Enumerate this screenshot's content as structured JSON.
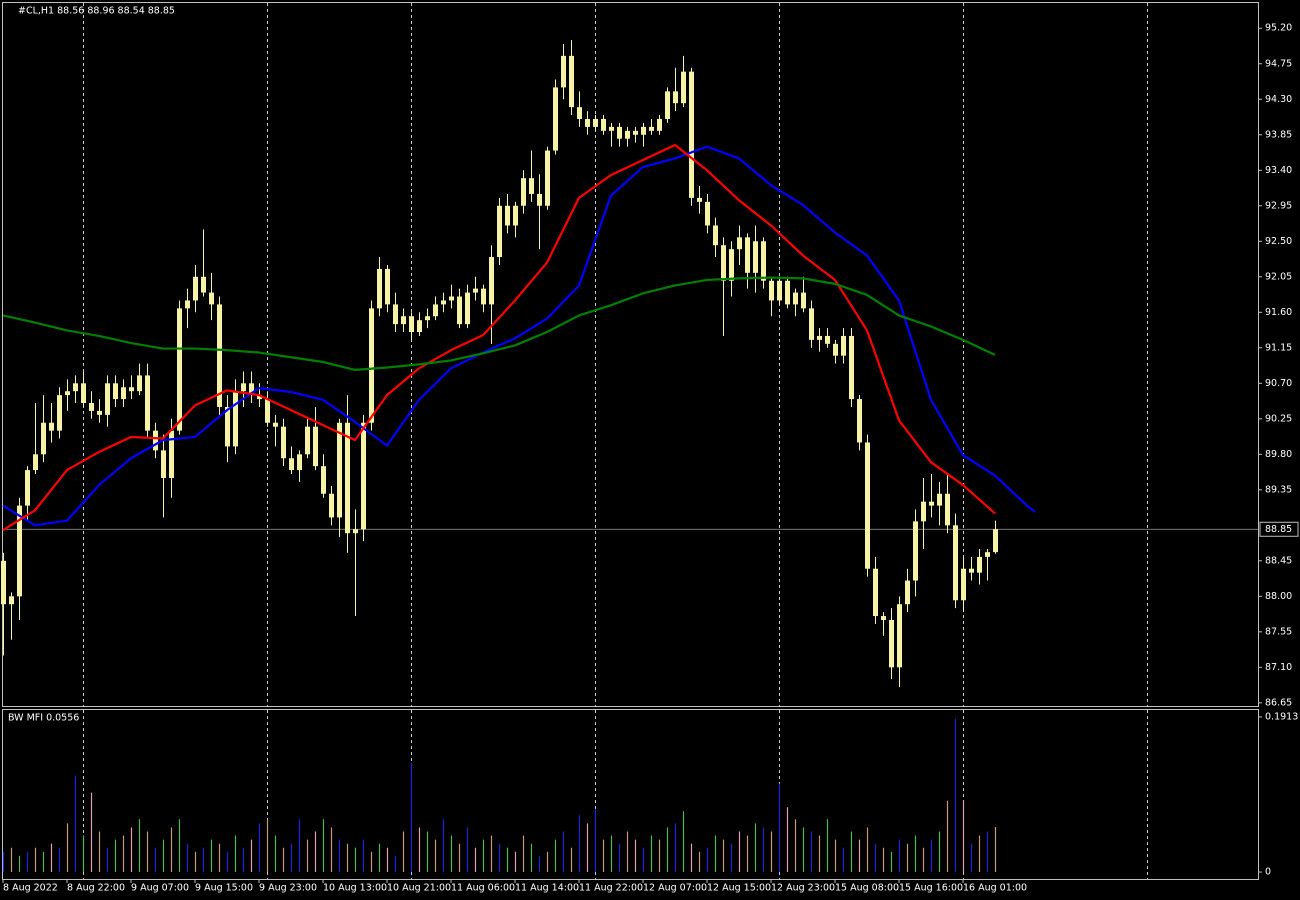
{
  "chart_data": {
    "type": "candlestick",
    "title": "#CL,H1  88.56 88.96 88.54 88.85",
    "candle_color": "#f6f2a6",
    "xlim": [
      -0.125,
      156.875
    ],
    "xticks": [
      {
        "value": 0,
        "label": "8 Aug 2022"
      },
      {
        "value": 8,
        "label": "8 Aug 22:00"
      },
      {
        "value": 16,
        "label": "9 Aug 07:00"
      },
      {
        "value": 24,
        "label": "9 Aug 15:00"
      },
      {
        "value": 32,
        "label": "9 Aug 23:00"
      },
      {
        "value": 40,
        "label": "10 Aug 13:00"
      },
      {
        "value": 48,
        "label": "10 Aug 21:00"
      },
      {
        "value": 56,
        "label": "11 Aug 06:00"
      },
      {
        "value": 64,
        "label": "11 Aug 14:00"
      },
      {
        "value": 72,
        "label": "11 Aug 22:00"
      },
      {
        "value": 80,
        "label": "12 Aug 07:00"
      },
      {
        "value": 88,
        "label": "12 Aug 15:00"
      },
      {
        "value": 96,
        "label": "12 Aug 23:00"
      },
      {
        "value": 104,
        "label": "15 Aug 08:00"
      },
      {
        "value": 112,
        "label": "15 Aug 16:00"
      },
      {
        "value": 120,
        "label": "16 Aug 01:00"
      }
    ],
    "vgrid": [
      10,
      33,
      51,
      74,
      97,
      120,
      143
    ],
    "ylim": [
      86.61,
      95.52
    ],
    "yticks": [
      {
        "value": 95.2,
        "label": "95.20"
      },
      94.75,
      {
        "value": 94.3,
        "label": "94.30"
      },
      93.85,
      {
        "value": 93.4,
        "label": "93.40"
      },
      92.95,
      {
        "value": 92.5,
        "label": "92.50"
      },
      92.05,
      {
        "value": 91.6,
        "label": "91.60"
      },
      91.15,
      {
        "value": 90.7,
        "label": "90.70"
      },
      90.25,
      {
        "value": 89.8,
        "label": "89.80"
      },
      89.35,
      88.45,
      {
        "value": 88.0,
        "label": "88.00"
      },
      87.55,
      {
        "value": 87.1,
        "label": "87.10"
      },
      86.65
    ],
    "last_price": 88.85,
    "ohlc": [
      [
        88.45,
        88.55,
        87.25,
        87.9
      ],
      [
        87.9,
        88.05,
        87.45,
        88.0
      ],
      [
        88.0,
        89.25,
        87.7,
        89.15
      ],
      [
        89.15,
        89.65,
        88.95,
        89.6
      ],
      [
        89.6,
        90.45,
        89.55,
        89.8
      ],
      [
        89.8,
        90.55,
        89.7,
        90.2
      ],
      [
        90.2,
        90.45,
        89.95,
        90.1
      ],
      [
        90.1,
        90.65,
        90.0,
        90.55
      ],
      [
        90.55,
        90.75,
        90.35,
        90.6
      ],
      [
        90.6,
        90.8,
        90.45,
        90.7
      ],
      [
        90.7,
        90.85,
        90.4,
        90.45
      ],
      [
        90.45,
        90.6,
        90.25,
        90.35
      ],
      [
        90.35,
        90.5,
        90.2,
        90.3
      ],
      [
        90.3,
        90.8,
        90.15,
        90.7
      ],
      [
        90.7,
        90.8,
        90.4,
        90.5
      ],
      [
        90.5,
        90.75,
        90.4,
        90.65
      ],
      [
        90.65,
        90.8,
        90.5,
        90.6
      ],
      [
        90.6,
        90.95,
        90.55,
        90.8
      ],
      [
        90.8,
        90.95,
        90.0,
        90.1
      ],
      [
        90.1,
        90.2,
        89.75,
        89.85
      ],
      [
        89.85,
        90.05,
        89.0,
        89.5
      ],
      [
        89.5,
        90.25,
        89.25,
        90.1
      ],
      [
        90.1,
        91.75,
        90.05,
        91.65
      ],
      [
        91.65,
        91.9,
        91.4,
        91.75
      ],
      [
        91.75,
        92.2,
        91.6,
        92.05
      ],
      [
        92.05,
        92.65,
        91.8,
        91.85
      ],
      [
        91.85,
        92.1,
        91.5,
        91.7
      ],
      [
        91.7,
        91.8,
        90.3,
        90.4
      ],
      [
        90.4,
        90.55,
        89.7,
        89.9
      ],
      [
        89.9,
        90.75,
        89.8,
        90.6
      ],
      [
        90.6,
        90.85,
        90.4,
        90.7
      ],
      [
        90.7,
        90.85,
        90.45,
        90.55
      ],
      [
        90.55,
        90.7,
        90.4,
        90.5
      ],
      [
        90.5,
        90.6,
        90.15,
        90.2
      ],
      [
        90.2,
        90.3,
        89.9,
        90.15
      ],
      [
        90.15,
        90.25,
        89.65,
        89.75
      ],
      [
        89.75,
        89.9,
        89.55,
        89.6
      ],
      [
        89.6,
        89.85,
        89.45,
        89.8
      ],
      [
        89.8,
        90.25,
        89.75,
        90.15
      ],
      [
        90.15,
        90.4,
        89.6,
        89.65
      ],
      [
        89.65,
        89.8,
        89.25,
        89.3
      ],
      [
        89.3,
        89.4,
        88.9,
        89.0
      ],
      [
        89.0,
        90.25,
        88.75,
        90.2
      ],
      [
        90.2,
        90.55,
        88.55,
        88.8
      ],
      [
        88.8,
        89.1,
        87.75,
        88.85
      ],
      [
        88.85,
        90.3,
        88.7,
        90.2
      ],
      [
        90.2,
        91.75,
        90.1,
        91.65
      ],
      [
        91.65,
        92.3,
        91.55,
        92.15
      ],
      [
        92.15,
        92.2,
        91.6,
        91.7
      ],
      [
        91.7,
        91.85,
        91.35,
        91.45
      ],
      [
        91.45,
        91.65,
        91.35,
        91.55
      ],
      [
        91.55,
        91.6,
        91.25,
        91.35
      ],
      [
        91.35,
        91.6,
        91.3,
        91.5
      ],
      [
        91.5,
        91.65,
        91.4,
        91.55
      ],
      [
        91.55,
        91.8,
        91.5,
        91.7
      ],
      [
        91.7,
        91.85,
        91.6,
        91.75
      ],
      [
        91.75,
        91.95,
        91.65,
        91.8
      ],
      [
        91.8,
        91.9,
        91.4,
        91.45
      ],
      [
        91.45,
        91.95,
        91.4,
        91.85
      ],
      [
        91.85,
        92.05,
        91.75,
        91.9
      ],
      [
        91.9,
        91.95,
        91.6,
        91.7
      ],
      [
        91.7,
        92.45,
        91.2,
        92.3
      ],
      [
        92.3,
        93.05,
        92.2,
        92.95
      ],
      [
        92.95,
        93.1,
        92.6,
        92.7
      ],
      [
        92.7,
        93.0,
        92.55,
        92.95
      ],
      [
        92.95,
        93.4,
        92.85,
        93.3
      ],
      [
        93.3,
        93.65,
        93.0,
        93.1
      ],
      [
        93.1,
        93.35,
        92.4,
        92.95
      ],
      [
        92.95,
        93.7,
        92.9,
        93.65
      ],
      [
        93.65,
        94.55,
        93.6,
        94.45
      ],
      [
        94.45,
        95.0,
        94.3,
        94.85
      ],
      [
        94.85,
        95.05,
        94.1,
        94.2
      ],
      [
        94.2,
        94.4,
        93.95,
        94.05
      ],
      [
        94.05,
        94.15,
        93.85,
        93.95
      ],
      [
        93.95,
        94.1,
        93.9,
        94.05
      ],
      [
        94.05,
        94.1,
        93.85,
        93.9
      ],
      [
        93.9,
        94.0,
        93.7,
        93.95
      ],
      [
        93.95,
        94.0,
        93.7,
        93.8
      ],
      [
        93.8,
        93.95,
        93.7,
        93.9
      ],
      [
        93.9,
        93.95,
        93.75,
        93.85
      ],
      [
        93.85,
        94.0,
        93.7,
        93.95
      ],
      [
        93.95,
        94.05,
        93.85,
        93.9
      ],
      [
        93.9,
        94.1,
        93.85,
        94.05
      ],
      [
        94.05,
        94.45,
        94.0,
        94.4
      ],
      [
        94.4,
        94.7,
        94.15,
        94.25
      ],
      [
        94.25,
        94.85,
        94.2,
        94.65
      ],
      [
        94.65,
        94.7,
        92.95,
        93.05
      ],
      [
        93.05,
        93.2,
        92.85,
        93.0
      ],
      [
        93.0,
        93.1,
        92.6,
        92.7
      ],
      [
        92.7,
        92.8,
        92.3,
        92.45
      ],
      [
        92.45,
        92.55,
        91.3,
        92.0
      ],
      [
        92.0,
        92.5,
        91.8,
        92.4
      ],
      [
        92.4,
        92.7,
        92.2,
        92.55
      ],
      [
        92.55,
        92.6,
        91.9,
        92.1
      ],
      [
        92.1,
        92.7,
        91.85,
        92.5
      ],
      [
        92.5,
        92.55,
        91.9,
        92.0
      ],
      [
        92.0,
        92.05,
        91.55,
        91.75
      ],
      [
        91.75,
        92.05,
        91.7,
        92.0
      ],
      [
        92.0,
        92.05,
        91.65,
        91.7
      ],
      [
        91.7,
        91.9,
        91.55,
        91.85
      ],
      [
        91.85,
        92.05,
        91.6,
        91.65
      ],
      [
        91.65,
        91.75,
        91.15,
        91.25
      ],
      [
        91.25,
        91.4,
        91.1,
        91.3
      ],
      [
        91.3,
        91.4,
        91.15,
        91.2
      ],
      [
        91.2,
        91.25,
        90.95,
        91.05
      ],
      [
        91.05,
        91.4,
        90.95,
        91.3
      ],
      [
        91.3,
        91.4,
        90.4,
        90.5
      ],
      [
        90.5,
        90.55,
        89.85,
        89.95
      ],
      [
        89.95,
        90.05,
        88.25,
        88.35
      ],
      [
        88.35,
        88.5,
        87.65,
        87.75
      ],
      [
        87.75,
        87.8,
        87.5,
        87.7
      ],
      [
        87.7,
        87.85,
        86.95,
        87.1
      ],
      [
        87.1,
        88.0,
        86.85,
        87.9
      ],
      [
        87.9,
        88.35,
        87.8,
        88.2
      ],
      [
        88.2,
        89.1,
        88.0,
        88.95
      ],
      [
        88.95,
        89.5,
        88.6,
        89.2
      ],
      [
        89.2,
        89.55,
        89.0,
        89.15
      ],
      [
        89.15,
        89.45,
        88.9,
        89.3
      ],
      [
        89.3,
        89.55,
        88.8,
        88.9
      ],
      [
        88.9,
        89.05,
        87.85,
        87.95
      ],
      [
        87.95,
        88.5,
        87.8,
        88.35
      ],
      [
        88.35,
        88.5,
        88.2,
        88.3
      ],
      [
        88.3,
        88.6,
        88.15,
        88.5
      ],
      [
        88.5,
        88.6,
        88.2,
        88.56
      ],
      [
        88.56,
        88.96,
        88.54,
        88.85
      ]
    ],
    "series": [
      {
        "color": "#0000ff",
        "x": [
          0,
          4,
          8,
          12,
          16,
          20,
          24,
          28,
          32,
          36,
          40,
          44,
          48,
          52,
          56,
          60,
          64,
          68,
          72,
          76,
          80,
          84,
          88,
          92,
          96,
          100,
          104,
          108,
          112,
          116,
          120,
          124,
          128,
          129
        ],
        "values": [
          89.15,
          88.9,
          88.96,
          89.41,
          89.75,
          89.98,
          90.02,
          90.36,
          90.64,
          90.59,
          90.49,
          90.21,
          89.91,
          90.49,
          90.89,
          91.09,
          91.27,
          91.52,
          91.94,
          93.08,
          93.44,
          93.55,
          93.7,
          93.55,
          93.21,
          92.96,
          92.61,
          92.32,
          91.75,
          90.49,
          89.79,
          89.53,
          89.15,
          89.07
        ]
      },
      {
        "color": "#ff0000",
        "x": [
          0,
          4,
          8,
          12,
          16,
          20,
          24,
          28,
          32,
          36,
          40,
          44,
          48,
          52,
          56,
          60,
          64,
          68,
          72,
          76,
          80,
          84,
          88,
          92,
          96,
          100,
          104,
          108,
          112,
          116,
          120,
          124
        ],
        "values": [
          88.84,
          89.09,
          89.6,
          89.83,
          90.02,
          90.0,
          90.42,
          90.61,
          90.55,
          90.36,
          90.17,
          89.98,
          90.55,
          90.89,
          91.12,
          91.31,
          91.75,
          92.23,
          93.05,
          93.34,
          93.53,
          93.72,
          93.4,
          93.02,
          92.7,
          92.32,
          92.01,
          91.37,
          90.23,
          89.7,
          89.41,
          89.05
        ]
      },
      {
        "color": "#008000",
        "x": [
          0,
          4,
          8,
          12,
          16,
          20,
          24,
          28,
          32,
          36,
          40,
          44,
          48,
          52,
          56,
          60,
          64,
          68,
          72,
          76,
          80,
          84,
          88,
          92,
          96,
          100,
          104,
          108,
          112,
          116,
          120,
          124
        ],
        "values": [
          91.56,
          91.47,
          91.37,
          91.3,
          91.21,
          91.14,
          91.14,
          91.12,
          91.09,
          91.03,
          90.97,
          90.87,
          90.9,
          90.94,
          90.99,
          91.08,
          91.18,
          91.35,
          91.56,
          91.69,
          91.84,
          91.94,
          92.01,
          92.03,
          92.04,
          92.03,
          91.96,
          91.82,
          91.56,
          91.42,
          91.25,
          91.06
        ]
      }
    ],
    "mfi": {
      "label": "BW MFI 0.0556",
      "ylim": [
        -0.0086,
        0.1999
      ],
      "yticks": [
        0.1913,
        0
      ],
      "values": [
        0.025,
        0.03,
        0.02,
        0.025,
        0.03,
        0.025,
        0.035,
        0.03,
        0.06,
        0.119,
        0.045,
        0.098,
        0.05,
        0.03,
        0.04,
        0.045,
        0.055,
        0.065,
        0.05,
        0.03,
        0.04,
        0.055,
        0.065,
        0.035,
        0.025,
        0.03,
        0.04,
        0.035,
        0.025,
        0.045,
        0.03,
        0.04,
        0.06,
        0.065,
        0.045,
        0.03,
        0.035,
        0.065,
        0.04,
        0.05,
        0.065,
        0.055,
        0.04,
        0.035,
        0.03,
        0.04,
        0.025,
        0.035,
        0.03,
        0.02,
        0.05,
        0.135,
        0.055,
        0.05,
        0.04,
        0.065,
        0.045,
        0.035,
        0.055,
        0.03,
        0.04,
        0.045,
        0.035,
        0.03,
        0.025,
        0.045,
        0.035,
        0.02,
        0.025,
        0.04,
        0.05,
        0.03,
        0.07,
        0.06,
        0.078,
        0.04,
        0.045,
        0.035,
        0.05,
        0.04,
        0.03,
        0.045,
        0.04,
        0.055,
        0.06,
        0.075,
        0.035,
        0.025,
        0.03,
        0.045,
        0.04,
        0.035,
        0.05,
        0.045,
        0.06,
        0.055,
        0.05,
        0.109,
        0.08,
        0.065,
        0.055,
        0.05,
        0.045,
        0.065,
        0.04,
        0.03,
        0.05,
        0.04,
        0.055,
        0.035,
        0.03,
        0.025,
        0.04,
        0.035,
        0.045,
        0.03,
        0.04,
        0.05,
        0.088,
        0.189,
        0.088,
        0.035,
        0.045,
        0.05,
        0.0556
      ],
      "colors": [
        "#2222dd",
        "#c8967a",
        "#4cbb4c",
        "#2222dd",
        "#c8967a",
        "#4cbb4c",
        "#e0a0b0",
        "#2222dd",
        "#c8967a",
        "#2222dd",
        "#4cbb4c",
        "#e0a0b0",
        "#c8967a",
        "#2222dd",
        "#4cbb4c",
        "#c8967a",
        "#e0a0b0",
        "#4cbb4c",
        "#c8967a",
        "#2222dd",
        "#4cbb4c",
        "#c8967a",
        "#4cbb4c",
        "#2222dd",
        "#c8967a",
        "#2222dd",
        "#4cbb4c",
        "#c8967a",
        "#2222dd",
        "#4cbb4c",
        "#2222dd",
        "#e0a0b0",
        "#2222dd",
        "#c8967a",
        "#4cbb4c",
        "#c8967a",
        "#2222dd",
        "#2222dd",
        "#c8967a",
        "#e0a0b0",
        "#4cbb4c",
        "#c8967a",
        "#2222dd",
        "#c8967a",
        "#4cbb4c",
        "#2222dd",
        "#c8967a",
        "#4cbb4c",
        "#e0a0b0",
        "#2222dd",
        "#c8967a",
        "#2222dd",
        "#e0a0b0",
        "#4cbb4c",
        "#c8967a",
        "#2222dd",
        "#4cbb4c",
        "#c8967a",
        "#2222dd",
        "#e0a0b0",
        "#4cbb4c",
        "#c8967a",
        "#2222dd",
        "#4cbb4c",
        "#e0a0b0",
        "#c8967a",
        "#4cbb4c",
        "#2222dd",
        "#c8967a",
        "#4cbb4c",
        "#2222dd",
        "#c8967a",
        "#2222dd",
        "#e0a0b0",
        "#2222dd",
        "#c8967a",
        "#4cbb4c",
        "#2222dd",
        "#c8967a",
        "#e0a0b0",
        "#2222dd",
        "#4cbb4c",
        "#c8967a",
        "#4cbb4c",
        "#2222dd",
        "#4cbb4c",
        "#e0a0b0",
        "#c8967a",
        "#2222dd",
        "#4cbb4c",
        "#c8967a",
        "#2222dd",
        "#e0a0b0",
        "#c8967a",
        "#4cbb4c",
        "#2222dd",
        "#c8967a",
        "#2222dd",
        "#e0a0b0",
        "#c8967a",
        "#4cbb4c",
        "#2222dd",
        "#c8967a",
        "#4cbb4c",
        "#c8967a",
        "#2222dd",
        "#4cbb4c",
        "#e0a0b0",
        "#c8967a",
        "#2222dd",
        "#c8967a",
        "#4cbb4c",
        "#2222dd",
        "#c8967a",
        "#4cbb4c",
        "#c8967a",
        "#2222dd",
        "#4cbb4c",
        "#c8967a",
        "#2222dd",
        "#e0a0b0",
        "#2222dd",
        "#c8967a",
        "#2222dd",
        "#c8967a"
      ]
    }
  }
}
